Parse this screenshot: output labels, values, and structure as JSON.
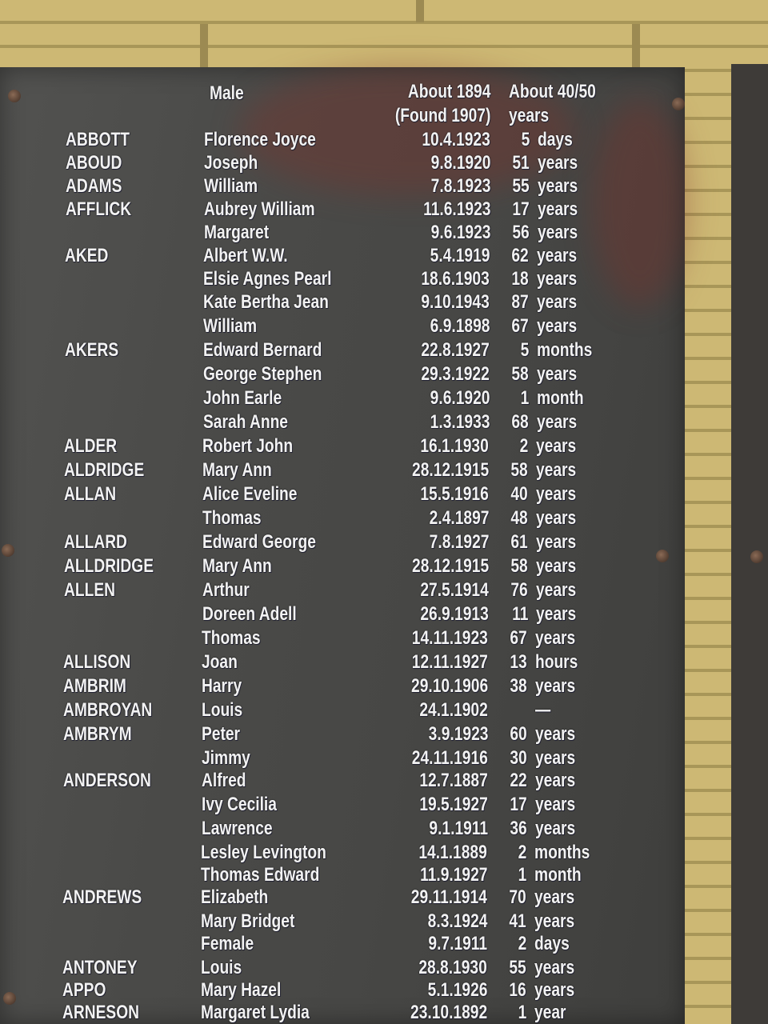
{
  "header": {
    "given_col": "Male",
    "date_col_line1": "About 1894",
    "date_col_line2": "(Found 1907)",
    "age_col_line1": "About 40/50",
    "age_col_line2": "years"
  },
  "rows": [
    {
      "surname": "ABBOTT",
      "given": "Florence Joyce",
      "date": "10.4.1923",
      "age_num": "5",
      "age_unit": "days"
    },
    {
      "surname": "ABOUD",
      "given": "Joseph",
      "date": "9.8.1920",
      "age_num": "51",
      "age_unit": "years"
    },
    {
      "surname": "ADAMS",
      "given": "William",
      "date": "7.8.1923",
      "age_num": "55",
      "age_unit": "years"
    },
    {
      "surname": "AFFLICK",
      "given": "Aubrey William",
      "date": "11.6.1923",
      "age_num": "17",
      "age_unit": "years"
    },
    {
      "surname": "",
      "given": "Margaret",
      "date": "9.6.1923",
      "age_num": "56",
      "age_unit": "years"
    },
    {
      "surname": "AKED",
      "given": "Albert W.W.",
      "date": "5.4.1919",
      "age_num": "62",
      "age_unit": "years"
    },
    {
      "surname": "",
      "given": "Elsie Agnes Pearl",
      "date": "18.6.1903",
      "age_num": "18",
      "age_unit": "years"
    },
    {
      "surname": "",
      "given": "Kate Bertha Jean",
      "date": "9.10.1943",
      "age_num": "87",
      "age_unit": "years"
    },
    {
      "surname": "",
      "given": "William",
      "date": "6.9.1898",
      "age_num": "67",
      "age_unit": "years"
    },
    {
      "surname": "AKERS",
      "given": "Edward Bernard",
      "date": "22.8.1927",
      "age_num": "5",
      "age_unit": "months"
    },
    {
      "surname": "",
      "given": "George Stephen",
      "date": "29.3.1922",
      "age_num": "58",
      "age_unit": "years"
    },
    {
      "surname": "",
      "given": "John Earle",
      "date": "9.6.1920",
      "age_num": "1",
      "age_unit": "month"
    },
    {
      "surname": "",
      "given": "Sarah Anne",
      "date": "1.3.1933",
      "age_num": "68",
      "age_unit": "years"
    },
    {
      "surname": "ALDER",
      "given": "Robert John",
      "date": "16.1.1930",
      "age_num": "2",
      "age_unit": "years"
    },
    {
      "surname": "ALDRIDGE",
      "given": "Mary Ann",
      "date": "28.12.1915",
      "age_num": "58",
      "age_unit": "years"
    },
    {
      "surname": "ALLAN",
      "given": "Alice Eveline",
      "date": "15.5.1916",
      "age_num": "40",
      "age_unit": "years"
    },
    {
      "surname": "",
      "given": "Thomas",
      "date": "2.4.1897",
      "age_num": "48",
      "age_unit": "years"
    },
    {
      "surname": "ALLARD",
      "given": "Edward George",
      "date": "7.8.1927",
      "age_num": "61",
      "age_unit": "years"
    },
    {
      "surname": "ALLDRIDGE",
      "given": "Mary Ann",
      "date": "28.12.1915",
      "age_num": "58",
      "age_unit": "years"
    },
    {
      "surname": "ALLEN",
      "given": "Arthur",
      "date": "27.5.1914",
      "age_num": "76",
      "age_unit": "years"
    },
    {
      "surname": "",
      "given": "Doreen Adell",
      "date": "26.9.1913",
      "age_num": "11",
      "age_unit": "years"
    },
    {
      "surname": "",
      "given": "Thomas",
      "date": "14.11.1923",
      "age_num": "67",
      "age_unit": "years"
    },
    {
      "surname": "ALLISON",
      "given": "Joan",
      "date": "12.11.1927",
      "age_num": "13",
      "age_unit": "hours"
    },
    {
      "surname": "AMBRIM",
      "given": "Harry",
      "date": "29.10.1906",
      "age_num": "38",
      "age_unit": "years"
    },
    {
      "surname": "AMBROYAN",
      "given": "Louis",
      "date": "24.1.1902",
      "age_num": "",
      "age_unit": "—"
    },
    {
      "surname": "AMBRYM",
      "given": "Peter",
      "date": "3.9.1923",
      "age_num": "60",
      "age_unit": "years"
    },
    {
      "surname": "",
      "given": "Jimmy",
      "date": "24.11.1916",
      "age_num": "30",
      "age_unit": "years"
    },
    {
      "surname": "ANDERSON",
      "given": "Alfred",
      "date": "12.7.1887",
      "age_num": "22",
      "age_unit": "years"
    },
    {
      "surname": "",
      "given": "Ivy Cecilia",
      "date": "19.5.1927",
      "age_num": "17",
      "age_unit": "years"
    },
    {
      "surname": "",
      "given": "Lawrence",
      "date": "9.1.1911",
      "age_num": "36",
      "age_unit": "years"
    },
    {
      "surname": "",
      "given": "Lesley Levington",
      "date": "14.1.1889",
      "age_num": "2",
      "age_unit": "months"
    },
    {
      "surname": "",
      "given": "Thomas Edward",
      "date": "11.9.1927",
      "age_num": "1",
      "age_unit": "month"
    },
    {
      "surname": "ANDREWS",
      "given": "Elizabeth",
      "date": "29.11.1914",
      "age_num": "70",
      "age_unit": "years"
    },
    {
      "surname": "",
      "given": "Mary Bridget",
      "date": "8.3.1924",
      "age_num": "41",
      "age_unit": "years"
    },
    {
      "surname": "",
      "given": "Female",
      "date": "9.7.1911",
      "age_num": "2",
      "age_unit": "days"
    },
    {
      "surname": "ANTONEY",
      "given": "Louis",
      "date": "28.8.1930",
      "age_num": "55",
      "age_unit": "years"
    },
    {
      "surname": "APPO",
      "given": "Mary Hazel",
      "date": "5.1.1926",
      "age_num": "16",
      "age_unit": "years"
    },
    {
      "surname": "ARNESON",
      "given": "Margaret Lydia",
      "date": "23.10.1892",
      "age_num": "1",
      "age_unit": "year"
    }
  ],
  "colors": {
    "plaque": "#4a4a48",
    "lettering": "#f2f2f2",
    "brick": "#cdb874"
  }
}
